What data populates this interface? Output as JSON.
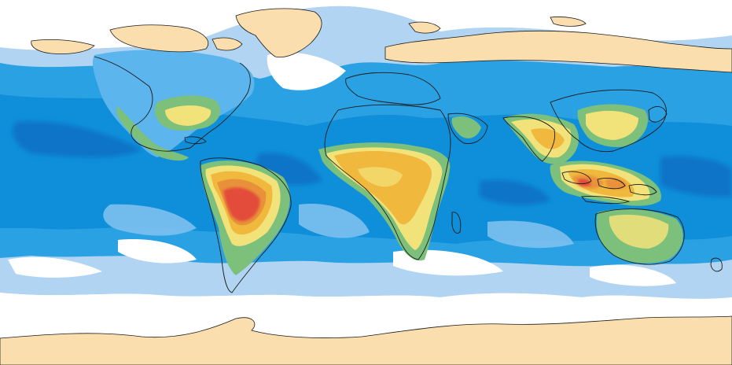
{
  "map": {
    "projection": "equirectangular",
    "extent": "global",
    "variable_levels": [
      "lowest",
      "very-low",
      "low",
      "moderate",
      "elevated",
      "high",
      "very-high",
      "highest"
    ],
    "palette": {
      "background": "#ffffff",
      "ice_land": "#fbdeae",
      "coastline": "#1a1a1a",
      "level_1": "#b0d4f1",
      "level_2": "#5cb5ec",
      "level_3": "#0f8fd9",
      "level_4": "#0a6fc4",
      "level_5": "#7cc07c",
      "level_6": "#f2e27a",
      "level_7": "#f0b83d",
      "level_8": "#e9913a",
      "level_9": "#e34b3b"
    },
    "regions": [
      {
        "name": "south-america-peak",
        "level": "highest"
      },
      {
        "name": "central-africa-high",
        "level": "high"
      },
      {
        "name": "maritime-continent-high",
        "level": "high"
      },
      {
        "name": "south-asia-high",
        "level": "high"
      },
      {
        "name": "north-america-moderate",
        "level": "elevated"
      },
      {
        "name": "australia-moderate",
        "level": "elevated"
      },
      {
        "name": "greenland-ice",
        "level": "none"
      },
      {
        "name": "antarctica-ice",
        "level": "none"
      }
    ]
  }
}
